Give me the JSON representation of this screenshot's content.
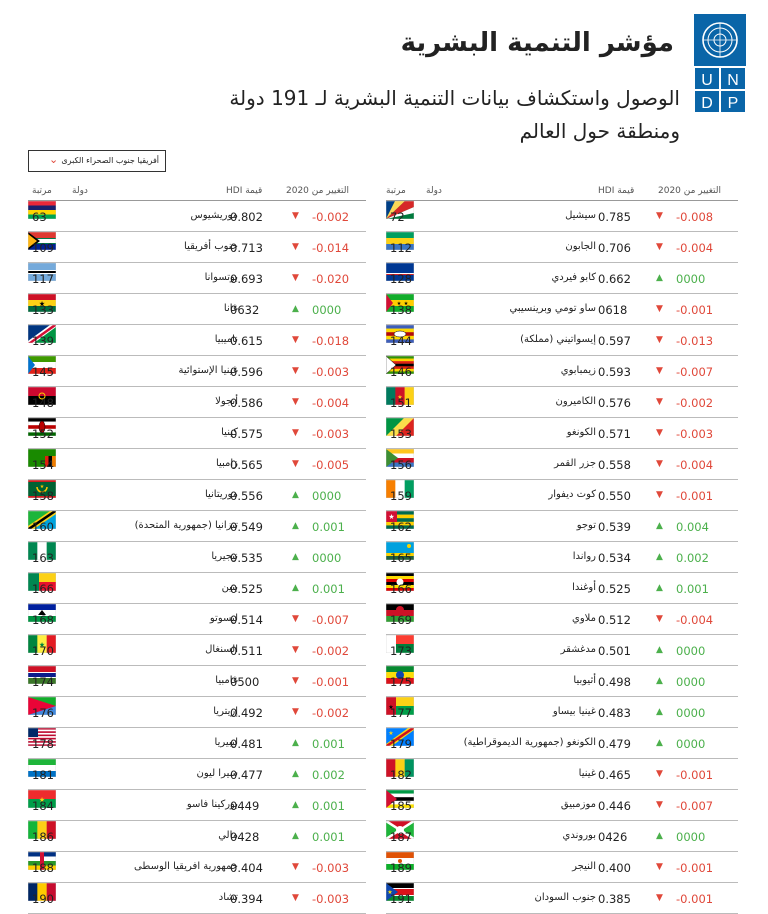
{
  "header": {
    "title": "مؤشر التنمية البشرية",
    "subtitle": "الوصول واستكشاف بيانات التنمية البشرية لـ 191 دولة ومنطقة حول العالم",
    "logo_text": "UNDP"
  },
  "filter": {
    "selected": "أفريقيا جنوب الصحراء الكبرى"
  },
  "columns": {
    "rank": "مرتبة",
    "country": "دولة",
    "hdi": "HDI قيمة",
    "change": "التغيير من 2020"
  },
  "colors": {
    "up": "#4cb04c",
    "down": "#e0483a"
  },
  "left": [
    {
      "rank": "63",
      "country": "موريشيوس",
      "hdi": "0.802",
      "change": "-0.002",
      "dir": "down",
      "flag": "mu"
    },
    {
      "rank": "109",
      "country": "جنوب أفريقيا",
      "hdi": "0.713",
      "change": "-0.014",
      "dir": "down",
      "flag": "za"
    },
    {
      "rank": "117",
      "country": "بوتسوانا",
      "hdi": "0.693",
      "change": "-0.020",
      "dir": "down",
      "flag": "bw"
    },
    {
      "rank": "133",
      "country": "غانا",
      "hdi": "0632",
      "change": "0000",
      "dir": "up",
      "flag": "gh"
    },
    {
      "rank": "139",
      "country": "ناميبيا",
      "hdi": "0.615",
      "change": "-0.018",
      "dir": "down",
      "flag": "na"
    },
    {
      "rank": "145",
      "country": "غينيا الإستوائية",
      "hdi": "0.596",
      "change": "-0.003",
      "dir": "down",
      "flag": "gq"
    },
    {
      "rank": "148",
      "country": "أنجولا",
      "hdi": "0.586",
      "change": "-0.004",
      "dir": "down",
      "flag": "ao"
    },
    {
      "rank": "152",
      "country": "كينيا",
      "hdi": "0.575",
      "change": "-0.003",
      "dir": "down",
      "flag": "ke"
    },
    {
      "rank": "154",
      "country": "زامبيا",
      "hdi": "0.565",
      "change": "-0.005",
      "dir": "down",
      "flag": "zm"
    },
    {
      "rank": "158",
      "country": "موريتانيا",
      "hdi": "0.556",
      "change": "0000",
      "dir": "up",
      "flag": "mr"
    },
    {
      "rank": "160",
      "country": "تنزانيا (جمهورية المتحدة)",
      "hdi": "0.549",
      "change": "0.001",
      "dir": "up",
      "flag": "tz"
    },
    {
      "rank": "163",
      "country": "نيجيريا",
      "hdi": "0.535",
      "change": "0000",
      "dir": "up",
      "flag": "ng"
    },
    {
      "rank": "166",
      "country": "بنين",
      "hdi": "0.525",
      "change": "0.001",
      "dir": "up",
      "flag": "bj"
    },
    {
      "rank": "168",
      "country": "ليسوتو",
      "hdi": "0.514",
      "change": "-0.007",
      "dir": "down",
      "flag": "ls"
    },
    {
      "rank": "170",
      "country": "السنغال",
      "hdi": "0.511",
      "change": "-0.002",
      "dir": "down",
      "flag": "sn"
    },
    {
      "rank": "174",
      "country": "غامبيا",
      "hdi": "0500",
      "change": "-0.001",
      "dir": "down",
      "flag": "gm"
    },
    {
      "rank": "176",
      "country": "إريتريا",
      "hdi": "0.492",
      "change": "-0.002",
      "dir": "down",
      "flag": "er"
    },
    {
      "rank": "178",
      "country": "ليبيريا",
      "hdi": "0.481",
      "change": "0.001",
      "dir": "up",
      "flag": "lr"
    },
    {
      "rank": "181",
      "country": "سيرا ليون",
      "hdi": "0.477",
      "change": "0.002",
      "dir": "up",
      "flag": "sl"
    },
    {
      "rank": "184",
      "country": "بوركينا فاسو",
      "hdi": "0449",
      "change": "0.001",
      "dir": "up",
      "flag": "bf"
    },
    {
      "rank": "186",
      "country": "مالي",
      "hdi": "0428",
      "change": "0.001",
      "dir": "up",
      "flag": "ml"
    },
    {
      "rank": "188",
      "country": "جمهورية افريقيا الوسطى",
      "hdi": "0.404",
      "change": "-0.003",
      "dir": "down",
      "flag": "cf"
    },
    {
      "rank": "190",
      "country": "تشاد",
      "hdi": "0.394",
      "change": "-0.003",
      "dir": "down",
      "flag": "td"
    }
  ],
  "right": [
    {
      "rank": "72",
      "country": "سيشيل",
      "hdi": "0.785",
      "change": "-0.008",
      "dir": "down",
      "flag": "sc"
    },
    {
      "rank": "112",
      "country": "الجابون",
      "hdi": "0.706",
      "change": "-0.004",
      "dir": "down",
      "flag": "ga"
    },
    {
      "rank": "128",
      "country": "كابو فيردي",
      "hdi": "0.662",
      "change": "0000",
      "dir": "up",
      "flag": "cv"
    },
    {
      "rank": "138",
      "country": "ساو تومي وبرينسيبي",
      "hdi": "0618",
      "change": "-0.001",
      "dir": "down",
      "flag": "st"
    },
    {
      "rank": "144",
      "country": "إيسواتيني (مملكة)",
      "hdi": "0.597",
      "change": "-0.013",
      "dir": "down",
      "flag": "sz"
    },
    {
      "rank": "146",
      "country": "زيمبابوي",
      "hdi": "0.593",
      "change": "-0.007",
      "dir": "down",
      "flag": "zw"
    },
    {
      "rank": "151",
      "country": "الكاميرون",
      "hdi": "0.576",
      "change": "-0.002",
      "dir": "down",
      "flag": "cm"
    },
    {
      "rank": "153",
      "country": "الكونغو",
      "hdi": "0.571",
      "change": "-0.003",
      "dir": "down",
      "flag": "cg"
    },
    {
      "rank": "156",
      "country": "جزر القمر",
      "hdi": "0.558",
      "change": "-0.004",
      "dir": "down",
      "flag": "km"
    },
    {
      "rank": "159",
      "country": "كوت ديفوار",
      "hdi": "0.550",
      "change": "-0.001",
      "dir": "down",
      "flag": "ci"
    },
    {
      "rank": "162",
      "country": "توجو",
      "hdi": "0.539",
      "change": "0.004",
      "dir": "up",
      "flag": "tg"
    },
    {
      "rank": "165",
      "country": "رواندا",
      "hdi": "0.534",
      "change": "0.002",
      "dir": "up",
      "flag": "rw"
    },
    {
      "rank": "166",
      "country": "أوغندا",
      "hdi": "0.525",
      "change": "0.001",
      "dir": "up",
      "flag": "ug"
    },
    {
      "rank": "169",
      "country": "ملاوي",
      "hdi": "0.512",
      "change": "-0.004",
      "dir": "down",
      "flag": "mw"
    },
    {
      "rank": "173",
      "country": "مدغشقر",
      "hdi": "0.501",
      "change": "0000",
      "dir": "up",
      "flag": "mg"
    },
    {
      "rank": "175",
      "country": "أثيوبيا",
      "hdi": "0.498",
      "change": "0000",
      "dir": "up",
      "flag": "et"
    },
    {
      "rank": "177",
      "country": "غينيا بيساو",
      "hdi": "0.483",
      "change": "0000",
      "dir": "up",
      "flag": "gw"
    },
    {
      "rank": "179",
      "country": "الكونغو (جمهورية الديموقراطية)",
      "hdi": "0.479",
      "change": "0000",
      "dir": "up",
      "flag": "cd"
    },
    {
      "rank": "182",
      "country": "غينيا",
      "hdi": "0.465",
      "change": "-0.001",
      "dir": "down",
      "flag": "gn"
    },
    {
      "rank": "185",
      "country": "موزمبيق",
      "hdi": "0.446",
      "change": "-0.007",
      "dir": "down",
      "flag": "mz"
    },
    {
      "rank": "187",
      "country": "بوروندي",
      "hdi": "0426",
      "change": "0000",
      "dir": "up",
      "flag": "bi"
    },
    {
      "rank": "189",
      "country": "النيجر",
      "hdi": "0.400",
      "change": "-0.001",
      "dir": "down",
      "flag": "ne"
    },
    {
      "rank": "191",
      "country": "جنوب السودان",
      "hdi": "0.385",
      "change": "-0.001",
      "dir": "down",
      "flag": "ss"
    }
  ]
}
